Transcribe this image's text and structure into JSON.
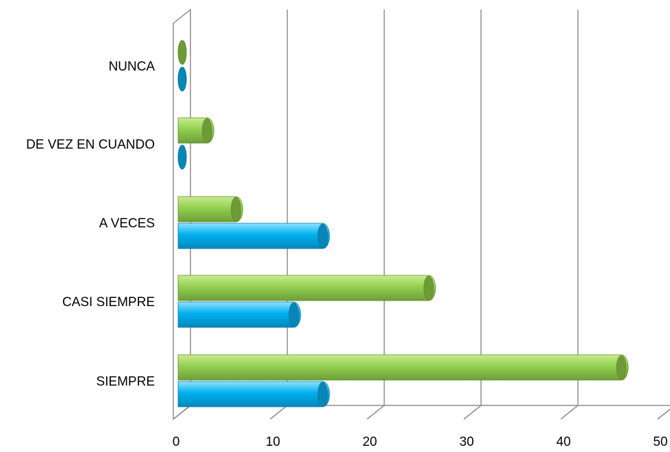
{
  "chart_data": {
    "type": "bar",
    "orientation": "horizontal",
    "three_d": true,
    "categories": [
      "NUNCA",
      "DE VEZ EN CUANDO",
      "A VECES",
      "CASI SIEMPRE",
      "SIEMPRE"
    ],
    "series": [
      {
        "values": [
          0,
          3,
          6,
          26,
          46
        ],
        "color": "#92d050"
      },
      {
        "values": [
          0,
          0,
          15,
          12,
          15
        ],
        "color": "#00b0f0"
      }
    ],
    "x_ticks": [
      "0",
      "10",
      "20",
      "30",
      "40",
      "50"
    ],
    "xlim": [
      0,
      50
    ],
    "grid": true,
    "legend": "none"
  }
}
